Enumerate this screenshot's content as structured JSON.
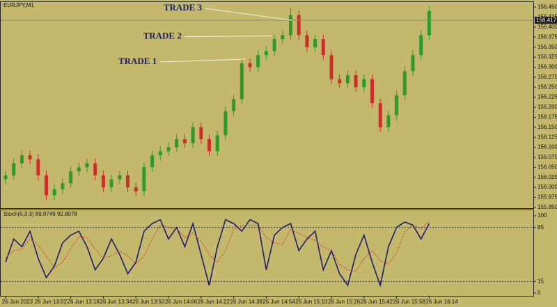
{
  "chart_data": [
    {
      "type": "candlestick",
      "title": "EURJPY,M1",
      "open": [
        156.02,
        156.03,
        156.06,
        156.08,
        156.07,
        156.03,
        155.98,
        155.995,
        156.01,
        156.04,
        156.05,
        156.06,
        156.03,
        156.0,
        156.02,
        156.03,
        156.0,
        155.99,
        156.05,
        156.08,
        156.09,
        156.1,
        156.12,
        156.11,
        156.15,
        156.12,
        156.09,
        156.13,
        156.19,
        156.22,
        156.31,
        156.3,
        156.33,
        156.34,
        156.37,
        156.38,
        156.43,
        156.38,
        156.35,
        156.37,
        156.33,
        156.27,
        156.26,
        156.28,
        156.25,
        156.27,
        156.21,
        156.15,
        156.18,
        156.23,
        156.29,
        156.33,
        156.38
      ],
      "high": [
        156.042,
        156.072,
        156.092,
        156.092,
        156.082,
        156.042,
        156.007,
        156.022,
        156.052,
        156.062,
        156.072,
        156.072,
        156.042,
        156.032,
        156.042,
        156.042,
        156.012,
        156.062,
        156.092,
        156.102,
        156.112,
        156.132,
        156.132,
        156.162,
        156.162,
        156.132,
        156.142,
        156.202,
        156.232,
        156.322,
        156.322,
        156.342,
        156.352,
        156.382,
        156.392,
        156.448,
        156.442,
        156.392,
        156.382,
        156.382,
        156.342,
        156.282,
        156.292,
        156.292,
        156.282,
        156.282,
        156.222,
        156.192,
        156.242,
        156.302,
        156.342,
        156.392,
        156.452
      ],
      "low": [
        156.008,
        156.018,
        156.048,
        156.058,
        156.018,
        155.968,
        155.968,
        155.983,
        155.998,
        156.028,
        156.038,
        156.018,
        155.988,
        155.988,
        156.008,
        155.988,
        155.978,
        155.978,
        156.038,
        156.068,
        156.078,
        156.088,
        156.098,
        156.098,
        156.108,
        156.078,
        156.078,
        156.118,
        156.178,
        156.208,
        156.288,
        156.288,
        156.318,
        156.328,
        156.358,
        156.368,
        156.368,
        156.338,
        156.338,
        156.318,
        156.258,
        156.248,
        156.248,
        156.238,
        156.238,
        156.198,
        156.138,
        156.138,
        156.168,
        156.218,
        156.278,
        156.318,
        156.368
      ],
      "close": [
        156.03,
        156.06,
        156.08,
        156.07,
        156.03,
        155.98,
        155.995,
        156.01,
        156.04,
        156.05,
        156.06,
        156.03,
        156.0,
        156.02,
        156.03,
        156.0,
        155.99,
        156.05,
        156.08,
        156.09,
        156.1,
        156.12,
        156.11,
        156.15,
        156.12,
        156.09,
        156.13,
        156.19,
        156.22,
        156.31,
        156.3,
        156.33,
        156.34,
        156.37,
        156.38,
        156.43,
        156.38,
        156.35,
        156.37,
        156.33,
        156.27,
        156.26,
        156.28,
        156.25,
        156.27,
        156.21,
        156.15,
        156.18,
        156.23,
        156.29,
        156.33,
        156.38,
        156.44
      ],
      "up_color": "#2f9a2a",
      "down_color": "#c8302a",
      "ylim": [
        155.948,
        156.4625
      ],
      "yticks": [
        {
          "value": 156.45,
          "label": "156.450"
        },
        156.425,
        {
          "value": 156.4,
          "label": "156.400"
        },
        156.375,
        {
          "value": 156.35,
          "label": "156.350"
        },
        156.325,
        {
          "value": 156.3,
          "label": "156.300"
        },
        156.275,
        {
          "value": 156.25,
          "label": "156.250"
        },
        156.225,
        {
          "value": 156.2,
          "label": "156.200"
        },
        156.175,
        {
          "value": 156.15,
          "label": "156.150"
        },
        156.125,
        {
          "value": 156.1,
          "label": "156.100"
        },
        156.075,
        {
          "value": 156.05,
          "label": "156.050"
        },
        156.025,
        {
          "value": 156.0,
          "label": "156.000"
        },
        155.975,
        {
          "value": 155.95,
          "label": "155.950"
        }
      ],
      "last_price": 156.417,
      "xticks": [
        {
          "value": 0,
          "label": "26 Jun 2023"
        },
        {
          "value": 4,
          "label": "26 Jun 13:02"
        },
        {
          "value": 8,
          "label": "26 Jun 13:18"
        },
        {
          "value": 12,
          "label": "26 Jun 13:34"
        },
        {
          "value": 16,
          "label": "26 Jun 13:50"
        },
        {
          "value": 20,
          "label": "26 Jun 14:06"
        },
        {
          "value": 24,
          "label": "26 Jun 14:22"
        },
        {
          "value": 28,
          "label": "26 Jun 14:38"
        },
        {
          "value": 32,
          "label": "26 Jun 14:54"
        },
        {
          "value": 36,
          "label": "26 Jun 15:10"
        },
        {
          "value": 40,
          "label": "26 Jun 15:26"
        },
        {
          "value": 44,
          "label": "26 Jun 15:42"
        },
        {
          "value": 48,
          "label": "26 Jun 15:58"
        },
        {
          "value": 52,
          "label": "26 Jun 16:14"
        }
      ],
      "annotations": [
        {
          "text": "TRADE 3",
          "index": 35.2,
          "price": 156.417
        },
        {
          "text": "TRADE 2",
          "index": 32.7,
          "price": 156.378
        },
        {
          "text": "TRADE 1",
          "index": 29.4,
          "price": 156.32
        }
      ]
    },
    {
      "type": "line",
      "title": "Stoch(5,3,3) 89.9749 92.8078",
      "series": [
        {
          "color": "#1c1f6e",
          "values": [
            40,
            70,
            60,
            80,
            45,
            20,
            35,
            65,
            75,
            80,
            60,
            30,
            45,
            70,
            50,
            25,
            40,
            80,
            90,
            95,
            70,
            85,
            60,
            90,
            50,
            10,
            60,
            95,
            90,
            80,
            95,
            90,
            30,
            75,
            85,
            90,
            55,
            70,
            80,
            30,
            55,
            25,
            10,
            50,
            75,
            40,
            10,
            60,
            85,
            92,
            88,
            70,
            90
          ]
        },
        {
          "color": "#d0302a",
          "dashed": true,
          "values": [
            45,
            55,
            57,
            70,
            62,
            48,
            33,
            40,
            58,
            73,
            72,
            57,
            45,
            48,
            55,
            48,
            38,
            48,
            70,
            88,
            85,
            83,
            72,
            78,
            67,
            50,
            40,
            55,
            82,
            88,
            88,
            88,
            72,
            65,
            63,
            83,
            77,
            72,
            68,
            60,
            55,
            37,
            30,
            28,
            45,
            55,
            42,
            37,
            52,
            79,
            88,
            83,
            93
          ]
        }
      ],
      "ylim": [
        0,
        100
      ],
      "yticks": [
        100,
        85,
        15,
        0
      ],
      "levels": [
        85,
        15
      ]
    }
  ]
}
